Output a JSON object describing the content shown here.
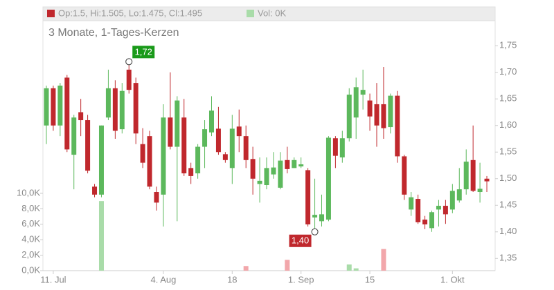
{
  "chart_data": {
    "type": "candlestick",
    "title": "3 Monate, 1-Tages-Kerzen",
    "legend_text": "Op:1.5, Hi:1.505, Lo:1.475, Cl:1.495",
    "volume_legend_text": "Vol: 0K",
    "up_color": "#5cb85c",
    "down_color": "#c0282d",
    "volume_up_color": "#a9dca9",
    "volume_down_color": "#f2a7ab",
    "open": [
      1.6,
      1.67,
      1.6,
      1.69,
      1.545,
      1.625,
      1.61,
      1.485,
      1.47,
      1.615,
      1.67,
      1.593,
      1.705,
      1.68,
      1.565,
      1.58,
      1.475,
      1.47,
      1.615,
      1.56,
      1.615,
      1.52,
      1.51,
      1.56,
      1.587,
      1.594,
      1.546,
      1.52,
      1.598,
      1.58,
      1.537,
      1.49,
      1.488,
      1.508,
      1.483,
      1.535,
      1.52,
      1.523,
      1.516,
      1.427,
      1.42,
      1.423,
      1.576,
      1.54,
      1.576,
      1.615,
      1.658,
      1.647,
      1.64,
      1.64,
      1.597,
      1.656,
      1.542,
      1.442,
      1.462,
      1.423,
      1.407,
      1.442,
      1.449,
      1.442,
      1.459,
      1.48,
      1.535,
      1.475,
      1.5
    ],
    "high": [
      1.675,
      1.675,
      1.68,
      1.695,
      1.62,
      1.65,
      1.62,
      1.49,
      1.6,
      1.705,
      1.685,
      1.68,
      1.72,
      1.69,
      1.595,
      1.59,
      1.485,
      1.64,
      1.7,
      1.655,
      1.65,
      1.53,
      1.565,
      1.61,
      1.655,
      1.635,
      1.55,
      1.62,
      1.63,
      1.6,
      1.56,
      1.54,
      1.54,
      1.55,
      1.55,
      1.56,
      1.54,
      1.54,
      1.52,
      1.5,
      1.47,
      1.58,
      1.58,
      1.59,
      1.67,
      1.69,
      1.705,
      1.66,
      1.68,
      1.71,
      1.66,
      1.665,
      1.545,
      1.475,
      1.47,
      1.43,
      1.44,
      1.46,
      1.46,
      1.49,
      1.52,
      1.555,
      1.6,
      1.53,
      1.505
    ],
    "low": [
      1.565,
      1.59,
      1.58,
      1.55,
      1.48,
      1.58,
      1.51,
      1.465,
      1.465,
      1.61,
      1.575,
      1.585,
      1.66,
      1.565,
      1.52,
      1.48,
      1.44,
      1.41,
      1.555,
      1.42,
      1.505,
      1.49,
      1.5,
      1.52,
      1.58,
      1.545,
      1.53,
      1.49,
      1.55,
      1.52,
      1.47,
      1.455,
      1.48,
      1.5,
      1.48,
      1.51,
      1.52,
      1.52,
      1.41,
      1.4,
      1.41,
      1.42,
      1.52,
      1.53,
      1.57,
      1.575,
      1.63,
      1.59,
      1.56,
      1.575,
      1.585,
      1.53,
      1.46,
      1.43,
      1.415,
      1.405,
      1.4,
      1.41,
      1.415,
      1.435,
      1.455,
      1.47,
      1.475,
      1.455,
      1.475
    ],
    "close": [
      1.67,
      1.6,
      1.675,
      1.555,
      1.615,
      1.61,
      1.515,
      1.47,
      1.6,
      1.67,
      1.59,
      1.665,
      1.667,
      1.585,
      1.53,
      1.485,
      1.455,
      1.615,
      1.56,
      1.647,
      1.51,
      1.505,
      1.56,
      1.593,
      1.628,
      1.55,
      1.535,
      1.594,
      1.58,
      1.535,
      1.5,
      1.496,
      1.52,
      1.521,
      1.534,
      1.518,
      1.535,
      1.527,
      1.414,
      1.432,
      1.433,
      1.577,
      1.543,
      1.576,
      1.658,
      1.672,
      1.667,
      1.617,
      1.6,
      1.595,
      1.656,
      1.542,
      1.47,
      1.465,
      1.418,
      1.414,
      1.437,
      1.449,
      1.433,
      1.477,
      1.48,
      1.532,
      1.477,
      1.481,
      1.495
    ],
    "volume": [
      0,
      0,
      0,
      0,
      0,
      0,
      0,
      0,
      9,
      0,
      0,
      0,
      0,
      0,
      0,
      0,
      0,
      0,
      0,
      0,
      0,
      0,
      0,
      0,
      0,
      0,
      0,
      0,
      0,
      0.6,
      0,
      0,
      0,
      0,
      0,
      1.4,
      0,
      0,
      0,
      0,
      0,
      0,
      0,
      0,
      0.8,
      0.3,
      0,
      0,
      0,
      2.8,
      0,
      0,
      0,
      0,
      0,
      0,
      0,
      0,
      0,
      0,
      0,
      0,
      0,
      0,
      0
    ],
    "ylim": [
      1.327,
      1.823
    ],
    "yticks": [
      {
        "value": 1.35,
        "label": "1,35"
      },
      {
        "value": 1.4,
        "label": "1,40"
      },
      {
        "value": 1.45,
        "label": "1,45"
      },
      {
        "value": 1.5,
        "label": "1,50"
      },
      {
        "value": 1.55,
        "label": "1,55"
      },
      {
        "value": 1.6,
        "label": "1,60"
      },
      {
        "value": 1.65,
        "label": "1,65"
      },
      {
        "value": 1.7,
        "label": "1,70"
      },
      {
        "value": 1.75,
        "label": "1,75"
      }
    ],
    "y2lim": [
      0,
      34.1
    ],
    "y2ticks": [
      {
        "value": 0,
        "label": "0,0K"
      },
      {
        "value": 2,
        "label": "2,0K"
      },
      {
        "value": 4,
        "label": "4,0K"
      },
      {
        "value": 6,
        "label": "6,0K"
      },
      {
        "value": 8,
        "label": "8,0K"
      },
      {
        "value": 10,
        "label": "10,0K"
      }
    ],
    "xticks": [
      {
        "value": 1,
        "label": "11. Jul"
      },
      {
        "value": 17,
        "label": "4. Aug"
      },
      {
        "value": 27,
        "label": "18"
      },
      {
        "value": 37,
        "label": "1. Sep"
      },
      {
        "value": 47,
        "label": "15"
      },
      {
        "value": 59,
        "label": "1. Okt"
      }
    ],
    "annotations": [
      {
        "label": "1,72",
        "value": 1.72,
        "kind": "high",
        "color": "#1a9a1a"
      },
      {
        "label": "1,40",
        "value": 1.4,
        "kind": "low",
        "color": "#c0282d"
      }
    ]
  }
}
